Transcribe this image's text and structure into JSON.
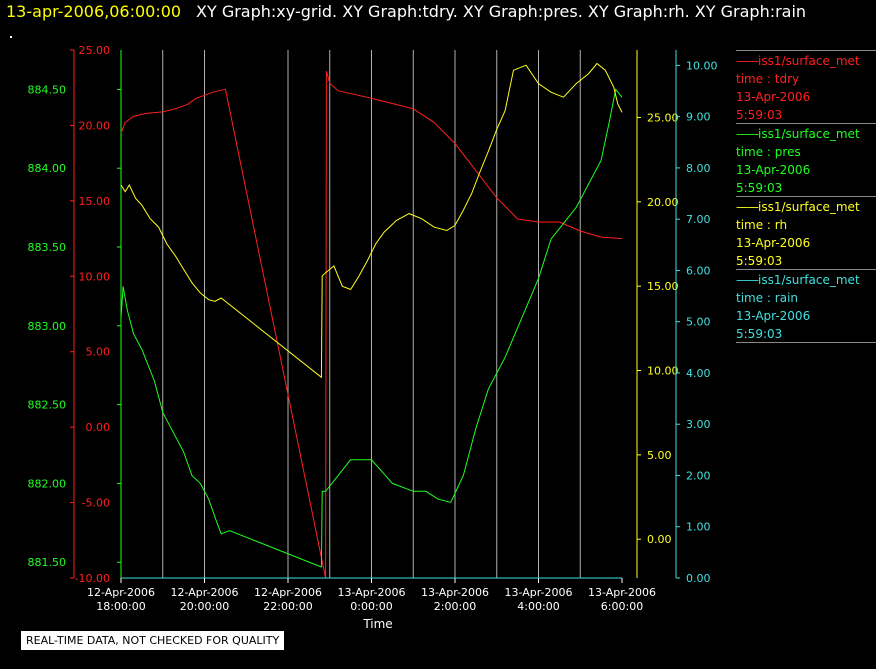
{
  "header": {
    "timestamp": "13-apr-2006,06:00:00",
    "titles": "XY Graph:xy-grid.  XY Graph:tdry.  XY Graph:pres.  XY Graph:rh.  XY Graph:rain"
  },
  "footer": {
    "qc_note": "REAL-TIME DATA, NOT CHECKED FOR QUALITY"
  },
  "legend": [
    {
      "symbol": "——",
      "source": "iss1/surface_met",
      "var": "time : tdry",
      "date": "13-Apr-2006",
      "time": "5:59:03",
      "color": "#ff2020"
    },
    {
      "symbol": "——",
      "source": "iss1/surface_met",
      "var": "time : pres",
      "date": "13-Apr-2006",
      "time": "5:59:03",
      "color": "#20ff20"
    },
    {
      "symbol": "——",
      "source": "iss1/surface_met",
      "var": "time : rh",
      "date": "13-Apr-2006",
      "time": "5:59:03",
      "color": "#ffff20"
    },
    {
      "symbol": "——",
      "source": "iss1/surface_met",
      "var": "time : rain",
      "date": "13-Apr-2006",
      "time": "5:59:03",
      "color": "#40e0e0"
    }
  ],
  "chart_data": {
    "type": "line",
    "xlabel": "Time",
    "x_ticks": [
      [
        "12-Apr-2006",
        "18:00:00"
      ],
      [
        "12-Apr-2006",
        "20:00:00"
      ],
      [
        "12-Apr-2006",
        "22:00:00"
      ],
      [
        "13-Apr-2006",
        "0:00:00"
      ],
      [
        "13-Apr-2006",
        "2:00:00"
      ],
      [
        "13-Apr-2006",
        "4:00:00"
      ],
      [
        "13-Apr-2006",
        "6:00:00"
      ]
    ],
    "x_unit": "hours since 12-Apr-2006 18:00",
    "xlim": [
      0,
      12
    ],
    "grid_x": [
      1.0,
      2.0,
      4.0,
      5.0,
      6.0,
      7.0,
      8.0,
      9.0,
      10.0,
      11.0
    ],
    "axes": {
      "tdry": {
        "color": "#ff2020",
        "side": "left-outer",
        "ylim": [
          -10,
          25
        ],
        "ticks": [
          "-10.00",
          "-5.00",
          "0.00",
          "5.00",
          "10.00",
          "15.00",
          "20.00",
          "25.00"
        ]
      },
      "pres": {
        "color": "#20ff20",
        "side": "left-inner",
        "ylim": [
          881.4,
          884.75
        ],
        "ticks": [
          "881.50",
          "882.00",
          "882.50",
          "883.00",
          "883.50",
          "884.00",
          "884.50"
        ]
      },
      "rh": {
        "color": "#ffff20",
        "side": "right-inner",
        "ylim": [
          -2.3,
          29.0
        ],
        "ticks": [
          "0.00",
          "5.00",
          "10.00",
          "15.00",
          "20.00",
          "25.00"
        ]
      },
      "rain": {
        "color": "#40e0e0",
        "side": "right-outer",
        "ylim": [
          0,
          10.3
        ],
        "ticks": [
          "0.00",
          "1.00",
          "2.00",
          "3.00",
          "4.00",
          "5.00",
          "6.00",
          "7.00",
          "8.00",
          "9.00",
          "10.00"
        ]
      }
    },
    "series": [
      {
        "name": "tdry",
        "color": "#ff2020",
        "x": [
          0,
          0.1,
          0.3,
          0.6,
          1.0,
          1.3,
          1.6,
          1.8,
          2.0,
          2.2,
          2.5,
          4.9,
          4.92,
          5.0,
          5.2,
          6.0,
          7.0,
          7.5,
          8.0,
          8.5,
          9.0,
          9.5,
          10.0,
          10.5,
          11.0,
          11.5,
          12.0
        ],
        "y": [
          19.5,
          20.2,
          20.6,
          20.8,
          20.9,
          21.1,
          21.4,
          21.8,
          22.0,
          22.2,
          22.4,
          -10.0,
          23.6,
          22.8,
          22.3,
          21.8,
          21.1,
          20.2,
          18.8,
          17.0,
          15.2,
          13.8,
          13.6,
          13.6,
          13.0,
          12.6,
          12.5
        ]
      },
      {
        "name": "pres",
        "color": "#20ff20",
        "x": [
          0,
          0.05,
          0.15,
          0.3,
          0.5,
          0.8,
          1.0,
          1.2,
          1.5,
          1.7,
          1.9,
          2.1,
          2.3,
          2.4,
          2.6,
          4.8,
          4.82,
          4.9,
          5.2,
          5.5,
          6.0,
          6.5,
          7.0,
          7.3,
          7.6,
          7.9,
          8.2,
          8.5,
          8.8,
          9.2,
          9.6,
          10.0,
          10.3,
          10.6,
          10.9,
          11.2,
          11.5,
          11.7,
          11.85,
          12.0
        ],
        "y": [
          883.05,
          883.25,
          883.1,
          882.95,
          882.85,
          882.65,
          882.45,
          882.35,
          882.2,
          882.05,
          882.0,
          881.9,
          881.75,
          881.68,
          881.7,
          881.47,
          881.95,
          881.95,
          882.05,
          882.15,
          882.15,
          882.0,
          881.95,
          881.95,
          881.9,
          881.88,
          882.05,
          882.35,
          882.6,
          882.8,
          883.05,
          883.3,
          883.55,
          883.65,
          883.75,
          883.9,
          884.05,
          884.3,
          884.5,
          884.45
        ]
      },
      {
        "name": "rh",
        "color": "#ffff20",
        "x": [
          0,
          0.1,
          0.2,
          0.35,
          0.5,
          0.7,
          0.9,
          1.1,
          1.3,
          1.5,
          1.7,
          1.9,
          2.1,
          2.25,
          2.4,
          4.8,
          4.82,
          4.9,
          5.1,
          5.3,
          5.5,
          5.7,
          5.9,
          6.1,
          6.3,
          6.6,
          6.9,
          7.2,
          7.5,
          7.8,
          8.0,
          8.2,
          8.4,
          8.6,
          8.8,
          9.0,
          9.2,
          9.4,
          9.7,
          10.0,
          10.3,
          10.6,
          10.9,
          11.2,
          11.4,
          11.6,
          11.8,
          11.9,
          12.0
        ],
        "y": [
          21.0,
          20.6,
          21.0,
          20.2,
          19.8,
          19.0,
          18.5,
          17.5,
          16.8,
          16.0,
          15.2,
          14.6,
          14.2,
          14.1,
          14.3,
          9.6,
          15.6,
          15.8,
          16.2,
          15.0,
          14.8,
          15.6,
          16.5,
          17.5,
          18.2,
          18.9,
          19.3,
          19.0,
          18.5,
          18.3,
          18.6,
          19.5,
          20.5,
          21.8,
          23.0,
          24.3,
          25.4,
          27.8,
          28.1,
          27.0,
          26.5,
          26.2,
          27.0,
          27.6,
          28.2,
          27.8,
          26.8,
          25.8,
          25.3
        ]
      },
      {
        "name": "rain",
        "color": "#40e0e0",
        "x": [
          0,
          12
        ],
        "y": [
          0.0,
          0.0
        ]
      }
    ]
  }
}
